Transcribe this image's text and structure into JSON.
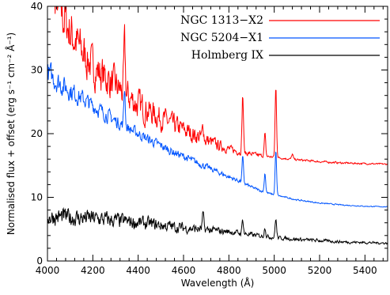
{
  "chart_data": {
    "type": "line",
    "title": "",
    "xlabel": "Wavelength (Å)",
    "ylabel": "Normalised flux + offset (erg s⁻¹ cm⁻² Å⁻¹)",
    "xlim": [
      4000,
      5500
    ],
    "ylim": [
      0,
      40
    ],
    "xticks": [
      4000,
      4200,
      4400,
      4600,
      4800,
      5000,
      5200,
      5400
    ],
    "yticks": [
      0,
      10,
      20,
      30,
      40
    ],
    "grid": false,
    "legend_position": "top-right",
    "series": [
      {
        "name": "NGC 1313−X2",
        "color": "#ff0000",
        "continuum": [
          [
            4000,
            44
          ],
          [
            4050,
            40
          ],
          [
            4100,
            36
          ],
          [
            4150,
            33
          ],
          [
            4200,
            30.5
          ],
          [
            4250,
            29
          ],
          [
            4300,
            27.5
          ],
          [
            4350,
            26
          ],
          [
            4400,
            24.5
          ],
          [
            4450,
            23.5
          ],
          [
            4500,
            22.5
          ],
          [
            4550,
            21.5
          ],
          [
            4600,
            20.6
          ],
          [
            4650,
            19.8
          ],
          [
            4700,
            19.0
          ],
          [
            4750,
            18.2
          ],
          [
            4800,
            17.6
          ],
          [
            4850,
            17.1
          ],
          [
            4900,
            16.8
          ],
          [
            4950,
            16.5
          ],
          [
            5000,
            16.3
          ],
          [
            5100,
            15.9
          ],
          [
            5200,
            15.6
          ],
          [
            5300,
            15.4
          ],
          [
            5400,
            15.3
          ],
          [
            5500,
            15.2
          ]
        ],
        "noise": [
          [
            4000,
            4.0
          ],
          [
            4200,
            2.5
          ],
          [
            4400,
            2.0
          ],
          [
            4500,
            1.5
          ],
          [
            4700,
            1.0
          ],
          [
            4800,
            0.5
          ],
          [
            4900,
            0.3
          ],
          [
            5000,
            0.15
          ],
          [
            5500,
            0.1
          ]
        ],
        "lines": [
          [
            4340,
            8
          ],
          [
            4686,
            2
          ],
          [
            4861,
            9
          ],
          [
            4959,
            3.5
          ],
          [
            5007,
            11
          ],
          [
            5080,
            0.8
          ]
        ]
      },
      {
        "name": "NGC 5204−X1",
        "color": "#0055ff",
        "continuum": [
          [
            4000,
            29.5
          ],
          [
            4050,
            28
          ],
          [
            4100,
            26.8
          ],
          [
            4150,
            25.6
          ],
          [
            4200,
            24.4
          ],
          [
            4250,
            23.2
          ],
          [
            4300,
            22.0
          ],
          [
            4350,
            21.0
          ],
          [
            4400,
            20.0
          ],
          [
            4450,
            19.0
          ],
          [
            4500,
            18.1
          ],
          [
            4550,
            17.2
          ],
          [
            4600,
            16.4
          ],
          [
            4650,
            15.6
          ],
          [
            4700,
            14.8
          ],
          [
            4750,
            14.0
          ],
          [
            4800,
            13.2
          ],
          [
            4850,
            12.5
          ],
          [
            4900,
            11.6
          ],
          [
            4950,
            10.9
          ],
          [
            5000,
            10.4
          ],
          [
            5100,
            9.6
          ],
          [
            5200,
            9.1
          ],
          [
            5300,
            8.8
          ],
          [
            5400,
            8.6
          ],
          [
            5500,
            8.5
          ]
        ],
        "noise": [
          [
            4000,
            1.6
          ],
          [
            4200,
            1.0
          ],
          [
            4400,
            0.7
          ],
          [
            4600,
            0.5
          ],
          [
            4800,
            0.3
          ],
          [
            5000,
            0.1
          ],
          [
            5500,
            0.05
          ]
        ],
        "lines": [
          [
            4340,
            6
          ],
          [
            4861,
            4
          ],
          [
            4959,
            3
          ],
          [
            5007,
            7
          ]
        ]
      },
      {
        "name": "Holmberg IX",
        "color": "#000000",
        "continuum": [
          [
            4000,
            7.0
          ],
          [
            4200,
            6.7
          ],
          [
            4400,
            6.0
          ],
          [
            4600,
            5.2
          ],
          [
            4700,
            4.9
          ],
          [
            4800,
            4.6
          ],
          [
            4900,
            4.1
          ],
          [
            5000,
            3.7
          ],
          [
            5100,
            3.4
          ],
          [
            5200,
            3.2
          ],
          [
            5300,
            3.0
          ],
          [
            5400,
            2.9
          ],
          [
            5500,
            2.8
          ]
        ],
        "noise": [
          [
            4000,
            1.2
          ],
          [
            4200,
            1.1
          ],
          [
            4400,
            0.9
          ],
          [
            4600,
            0.7
          ],
          [
            4800,
            0.4
          ],
          [
            5000,
            0.25
          ],
          [
            5500,
            0.15
          ]
        ],
        "lines": [
          [
            4686,
            2.5
          ],
          [
            4861,
            2.2
          ],
          [
            4959,
            1.5
          ],
          [
            5007,
            3.0
          ]
        ]
      }
    ]
  }
}
